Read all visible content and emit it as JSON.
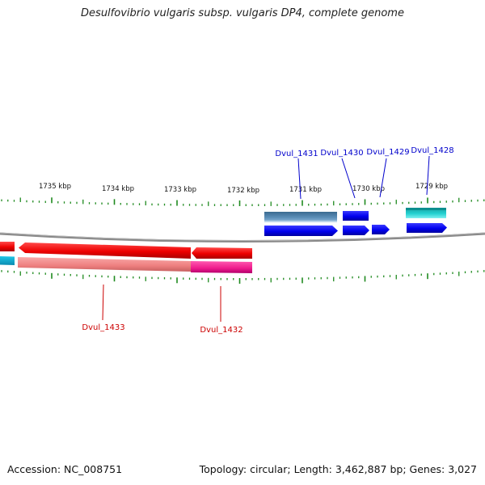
{
  "title": "Desulfovibrio vulgaris subsp. vulgaris DP4, complete genome",
  "footer": {
    "accession": "Accession: NC_008751",
    "summary": "Topology: circular; Length: 3,462,887 bp; Genes: 3,027"
  },
  "colors": {
    "tick": "#1f8a1f",
    "backbone": "#808080",
    "forward_gene_label": "#0000cc",
    "reverse_gene_label": "#cc0000"
  },
  "scale_labels": [
    "1735 kbp",
    "1734 kbp",
    "1733 kbp",
    "1732 kbp",
    "1731 kbp",
    "1730 kbp",
    "1729 kbp"
  ],
  "genes": [
    {
      "name": "Dvul_1431",
      "strand": "forward"
    },
    {
      "name": "Dvul_1430",
      "strand": "forward"
    },
    {
      "name": "Dvul_1429",
      "strand": "forward"
    },
    {
      "name": "Dvul_1428",
      "strand": "forward"
    },
    {
      "name": "Dvul_1433",
      "strand": "reverse"
    },
    {
      "name": "Dvul_1432",
      "strand": "reverse"
    }
  ]
}
